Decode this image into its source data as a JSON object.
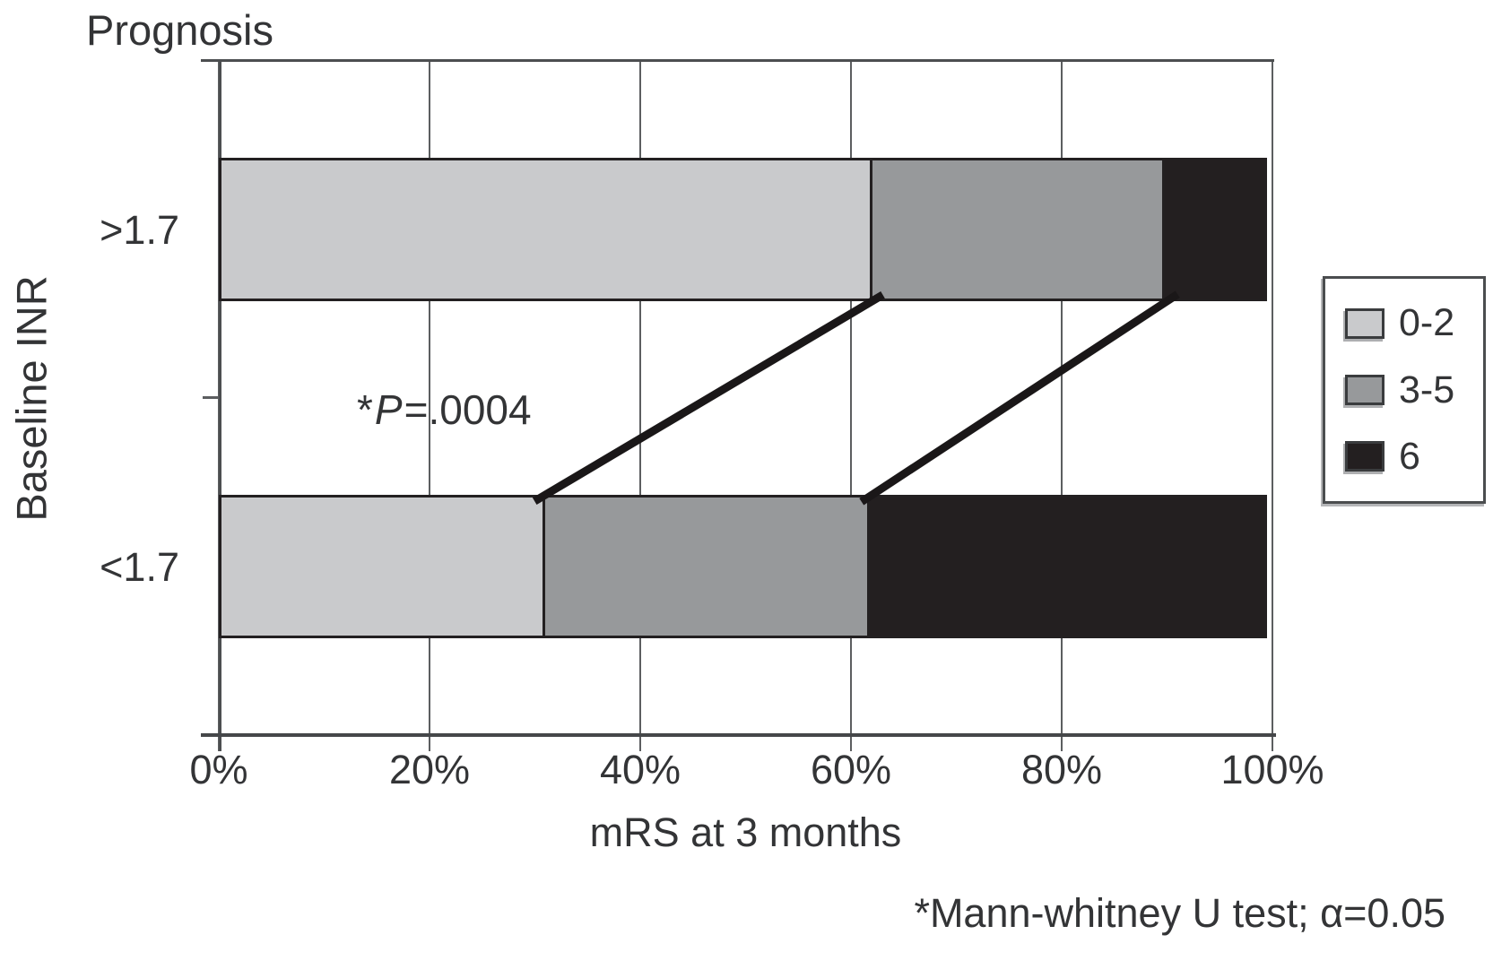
{
  "chart_data": {
    "type": "bar",
    "orientation": "horizontal",
    "stacked": true,
    "title": "Prognosis",
    "xlabel": "mRS at 3 months",
    "ylabel": "Baseline INR",
    "categories": [
      ">1.7",
      "<1.7"
    ],
    "x_ticks": [
      "0%",
      "20%",
      "40%",
      "60%",
      "80%",
      "100%"
    ],
    "xlim": [
      0,
      100
    ],
    "grid": "vertical",
    "legend_position": "right",
    "legend": [
      {
        "label": "0-2",
        "color": "#c9cacc"
      },
      {
        "label": "3-5",
        "color": "#97999b"
      },
      {
        "label": "6",
        "color": "#231f20"
      }
    ],
    "series": [
      {
        "name": "0-2",
        "values": [
          62,
          31
        ]
      },
      {
        "name": "3-5",
        "values": [
          28,
          31
        ]
      },
      {
        "name": "6",
        "values": [
          10,
          38
        ]
      }
    ],
    "annotation": {
      "star": "*",
      "p": "P",
      "rest": "=.0004"
    },
    "footnote": "*Mann-whitney U test; α=0.05",
    "connector_color": "#1a1718",
    "gridline_color": "#5c5e60"
  }
}
